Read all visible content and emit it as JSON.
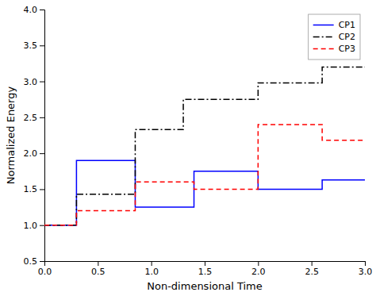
{
  "chart_data": {
    "type": "line",
    "xlabel": "Non-dimensional Time",
    "ylabel": "Normalized Energy",
    "xlim": [
      0,
      3
    ],
    "ylim": [
      0.5,
      4
    ],
    "xticks": [
      {
        "value": 0,
        "label": "0.0"
      },
      0.5,
      {
        "value": 1,
        "label": "1.0"
      },
      1.5,
      {
        "value": 2,
        "label": "2.0"
      },
      2.5,
      {
        "value": 3,
        "label": "3.0"
      }
    ],
    "yticks": [
      0.5,
      {
        "value": 1,
        "label": "1.0"
      },
      1.5,
      {
        "value": 2,
        "label": "2.0"
      },
      2.5,
      {
        "value": 3,
        "label": "3.0"
      },
      3.5,
      {
        "value": 4,
        "label": "4.0"
      }
    ],
    "legend": "upper right",
    "grid": false,
    "series": [
      {
        "name": "CP1",
        "color": "#0000ff",
        "line_style": "solid",
        "x": [
          0,
          0.3,
          0.3,
          0.85,
          0.85,
          1.4,
          1.4,
          2.0,
          2.0,
          2.6,
          2.6,
          3.0
        ],
        "values": [
          1.0,
          1.0,
          1.9,
          1.9,
          1.25,
          1.25,
          1.75,
          1.75,
          1.5,
          1.5,
          1.63,
          1.63
        ]
      },
      {
        "name": "CP2",
        "color": "#000000",
        "line_style": "dashdot",
        "x": [
          0,
          0.3,
          0.3,
          0.85,
          0.85,
          1.3,
          1.3,
          2.0,
          2.0,
          2.6,
          2.6,
          3.0
        ],
        "values": [
          1.0,
          1.0,
          1.43,
          1.43,
          2.33,
          2.33,
          2.75,
          2.75,
          2.98,
          2.98,
          3.2,
          3.2
        ]
      },
      {
        "name": "CP3",
        "color": "#ff0000",
        "line_style": "dashed",
        "x": [
          0,
          0.3,
          0.3,
          0.85,
          0.85,
          1.4,
          1.4,
          2.0,
          2.0,
          2.6,
          2.6,
          3.0
        ],
        "values": [
          1.0,
          1.0,
          1.2,
          1.2,
          1.6,
          1.6,
          1.5,
          1.5,
          2.4,
          2.4,
          2.18,
          2.18
        ]
      }
    ]
  }
}
